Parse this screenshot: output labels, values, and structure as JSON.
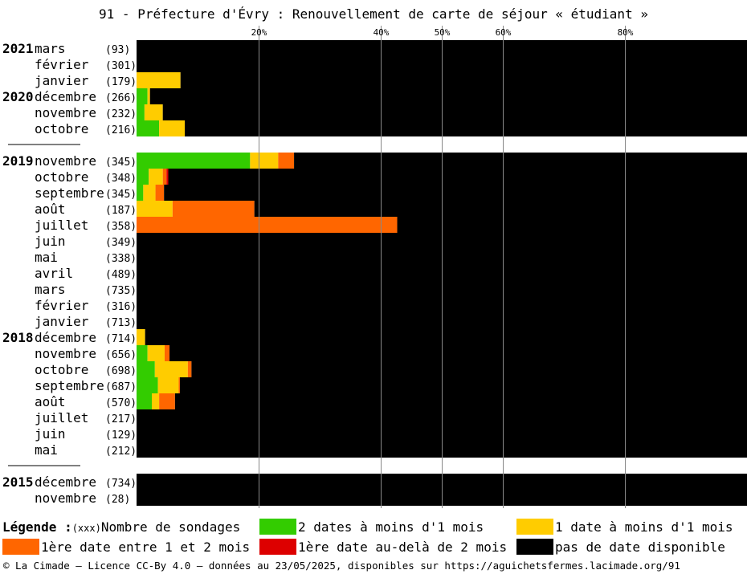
{
  "title": "91 - Préfecture d'Évry : Renouvellement de carte de séjour « étudiant »",
  "colors": {
    "two_dates": "#33cc00",
    "one_date": "#ffcc00",
    "first_1_2": "#ff6600",
    "first_beyond_2": "#dd0000",
    "none": "#000000"
  },
  "chart_data": {
    "type": "bar",
    "orientation": "horizontal",
    "stacked": true,
    "x_ticks": [
      "20%",
      "40%",
      "50%",
      "60%",
      "80%"
    ],
    "x_tick_values": [
      20,
      40,
      50,
      60,
      80
    ],
    "xlim": [
      0,
      100
    ],
    "grid": true,
    "series": [
      {
        "name": "2 dates à moins d'1 mois",
        "key": "two_dates"
      },
      {
        "name": "1 date à moins d'1 mois",
        "key": "one_date"
      },
      {
        "name": "1ère date entre 1 et 2 mois",
        "key": "first_1_2"
      },
      {
        "name": "1ère date au-delà de 2 mois",
        "key": "first_beyond_2"
      },
      {
        "name": "pas de date disponible",
        "key": "none"
      }
    ],
    "groups": [
      {
        "rows": [
          {
            "year": "2021",
            "month": "mars",
            "n": "(93)",
            "values": [
              0,
              0,
              0,
              0,
              100
            ]
          },
          {
            "year": "",
            "month": "février",
            "n": "(301)",
            "values": [
              0,
              0,
              0,
              0,
              100
            ]
          },
          {
            "year": "",
            "month": "janvier",
            "n": "(179)",
            "values": [
              0,
              7.2,
              0,
              0,
              92.8
            ]
          },
          {
            "year": "2020",
            "month": "décembre",
            "n": "(266)",
            "values": [
              1.8,
              0.4,
              0,
              0,
              97.8
            ]
          },
          {
            "year": "",
            "month": "novembre",
            "n": "(232)",
            "values": [
              1.3,
              3,
              0,
              0,
              95.7
            ]
          },
          {
            "year": "",
            "month": "octobre",
            "n": "(216)",
            "values": [
              3.7,
              4.2,
              0,
              0,
              92.1
            ]
          }
        ]
      },
      {
        "rows": [
          {
            "year": "2019",
            "month": "novembre",
            "n": "(345)",
            "values": [
              18.6,
              4.6,
              2.6,
              0,
              74.2
            ]
          },
          {
            "year": "",
            "month": "octobre",
            "n": "(348)",
            "values": [
              2,
              2.3,
              0.6,
              0.3,
              94.8
            ]
          },
          {
            "year": "",
            "month": "septembre",
            "n": "(345)",
            "values": [
              1.1,
              2,
              1.4,
              0,
              95.5
            ]
          },
          {
            "year": "",
            "month": "août",
            "n": "(187)",
            "values": [
              0,
              5.9,
              13.4,
              0,
              80.7
            ]
          },
          {
            "year": "",
            "month": "juillet",
            "n": "(358)",
            "values": [
              0,
              0,
              42.7,
              0,
              57.3
            ]
          },
          {
            "year": "",
            "month": "juin",
            "n": "(349)",
            "values": [
              0,
              0,
              0,
              0,
              100
            ]
          },
          {
            "year": "",
            "month": "mai",
            "n": "(338)",
            "values": [
              0,
              0,
              0,
              0,
              100
            ]
          },
          {
            "year": "",
            "month": "avril",
            "n": "(489)",
            "values": [
              0,
              0,
              0,
              0,
              100
            ]
          },
          {
            "year": "",
            "month": "mars",
            "n": "(735)",
            "values": [
              0,
              0,
              0,
              0,
              100
            ]
          },
          {
            "year": "",
            "month": "février",
            "n": "(316)",
            "values": [
              0,
              0,
              0,
              0,
              100
            ]
          },
          {
            "year": "",
            "month": "janvier",
            "n": "(713)",
            "values": [
              0,
              0,
              0,
              0,
              100
            ]
          },
          {
            "year": "2018",
            "month": "décembre",
            "n": "(714)",
            "values": [
              0,
              1.4,
              0,
              0,
              98.6
            ]
          },
          {
            "year": "",
            "month": "novembre",
            "n": "(656)",
            "values": [
              1.8,
              2.8,
              0.8,
              0,
              94.6
            ]
          },
          {
            "year": "",
            "month": "octobre",
            "n": "(698)",
            "values": [
              3,
              5.4,
              0.6,
              0,
              91
            ]
          },
          {
            "year": "",
            "month": "septembre",
            "n": "(687)",
            "values": [
              3.5,
              3.4,
              0.2,
              0,
              92.9
            ]
          },
          {
            "year": "",
            "month": "août",
            "n": "(570)",
            "values": [
              2.5,
              1.2,
              2.6,
              0,
              93.7
            ]
          },
          {
            "year": "",
            "month": "juillet",
            "n": "(217)",
            "values": [
              0,
              0,
              0,
              0,
              100
            ]
          },
          {
            "year": "",
            "month": "juin",
            "n": "(129)",
            "values": [
              0,
              0,
              0,
              0,
              100
            ]
          },
          {
            "year": "",
            "month": "mai",
            "n": "(212)",
            "values": [
              0,
              0,
              0,
              0,
              100
            ]
          }
        ]
      },
      {
        "rows": [
          {
            "year": "2015",
            "month": "décembre",
            "n": "(734)",
            "values": [
              0,
              0,
              0,
              0,
              100
            ]
          },
          {
            "year": "",
            "month": "novembre",
            "n": "(28)",
            "values": [
              0,
              0,
              0,
              0,
              100
            ]
          }
        ]
      }
    ]
  },
  "legend": {
    "title": "Légende :",
    "count_label_small": "(xxx)",
    "count_label": "Nombre de sondages",
    "two_dates": "2 dates à moins d'1 mois",
    "one_date": "1 date à moins d'1 mois",
    "first_1_2": "1ère date entre 1 et 2 mois",
    "first_beyond_2": "1ère date au-delà de 2 mois",
    "none": "pas de date disponible"
  },
  "footer": "© La Cimade — Licence CC-By 4.0 — données au 23/05/2025, disponibles sur https://aguichetsfermes.lacimade.org/91"
}
